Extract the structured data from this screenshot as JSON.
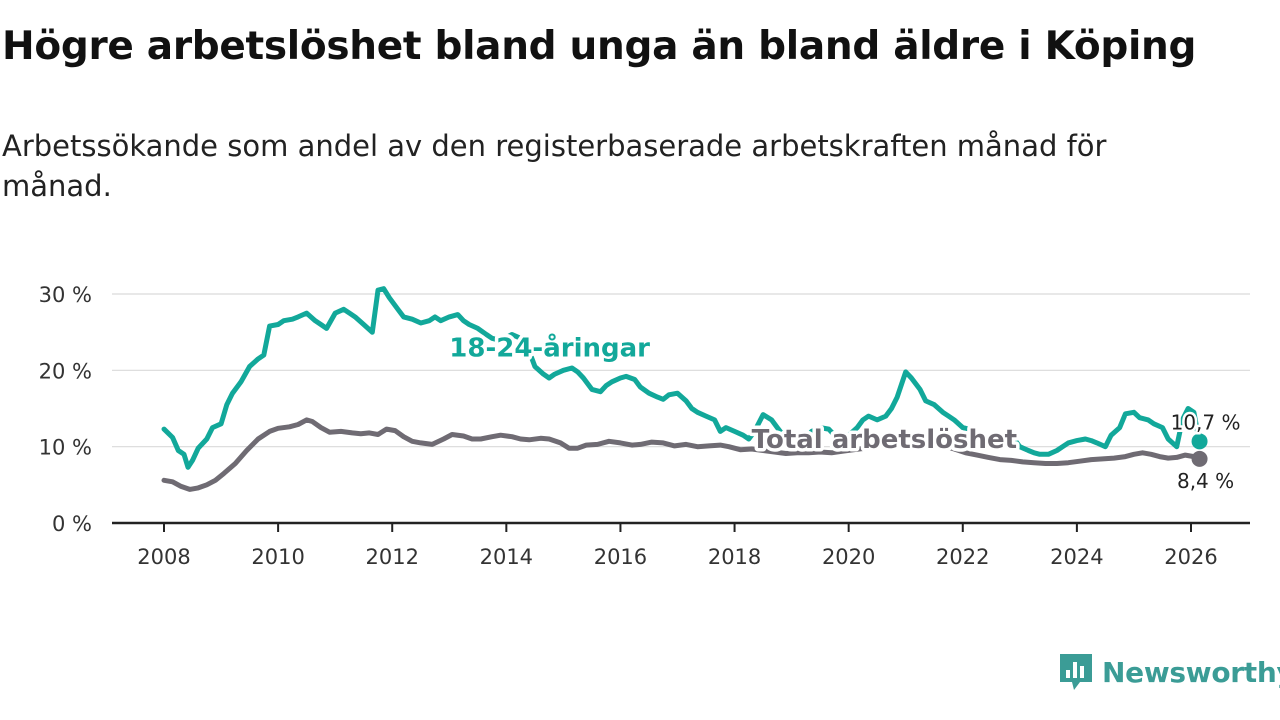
{
  "page": {
    "title": "Högre arbetslöshet bland unga än bland äldre i Köping",
    "subtitle": "Arbetssökande som andel av den registerbaserade arbetskraften månad för månad."
  },
  "brand": {
    "name": "Newsworthy",
    "color": "#3b9c96"
  },
  "chart_data": {
    "type": "line",
    "title": "Högre arbetslöshet bland unga än bland äldre i Köping",
    "ylabel": "",
    "xlabel": "",
    "xlim": [
      2007.5,
      2027.0
    ],
    "ylim": [
      0,
      30
    ],
    "y_ticks": [
      0,
      10,
      20,
      30
    ],
    "y_tick_labels": [
      "0 %",
      "10 %",
      "20 %",
      "30 %"
    ],
    "x_ticks": [
      2008,
      2010,
      2012,
      2014,
      2016,
      2018,
      2020,
      2022,
      2024,
      2026
    ],
    "x_tick_labels": [
      "2008",
      "2010",
      "2012",
      "2014",
      "2016",
      "2018",
      "2020",
      "2022",
      "2024",
      "2026"
    ],
    "grid": "horizontal",
    "series": [
      {
        "name": "18-24-åringar",
        "color": "#12a89a",
        "label_at": [
          2013.0,
          21.8
        ],
        "end_label": "10,7 %",
        "points": [
          [
            2008.0,
            12.3
          ],
          [
            2008.15,
            11.2
          ],
          [
            2008.25,
            9.5
          ],
          [
            2008.35,
            9.0
          ],
          [
            2008.42,
            7.3
          ],
          [
            2008.5,
            8.2
          ],
          [
            2008.6,
            9.8
          ],
          [
            2008.75,
            11.0
          ],
          [
            2008.85,
            12.5
          ],
          [
            2009.0,
            13.0
          ],
          [
            2009.1,
            15.5
          ],
          [
            2009.2,
            17.0
          ],
          [
            2009.35,
            18.5
          ],
          [
            2009.5,
            20.5
          ],
          [
            2009.65,
            21.5
          ],
          [
            2009.75,
            22.0
          ],
          [
            2009.85,
            25.8
          ],
          [
            2010.0,
            26.0
          ],
          [
            2010.1,
            26.5
          ],
          [
            2010.25,
            26.7
          ],
          [
            2010.35,
            27.0
          ],
          [
            2010.5,
            27.5
          ],
          [
            2010.65,
            26.5
          ],
          [
            2010.75,
            26.0
          ],
          [
            2010.85,
            25.5
          ],
          [
            2011.0,
            27.5
          ],
          [
            2011.15,
            28.0
          ],
          [
            2011.25,
            27.5
          ],
          [
            2011.35,
            27.0
          ],
          [
            2011.5,
            26.0
          ],
          [
            2011.65,
            25.0
          ],
          [
            2011.75,
            30.5
          ],
          [
            2011.85,
            30.7
          ],
          [
            2011.95,
            29.5
          ],
          [
            2012.1,
            28.0
          ],
          [
            2012.2,
            27.0
          ],
          [
            2012.35,
            26.7
          ],
          [
            2012.5,
            26.2
          ],
          [
            2012.65,
            26.5
          ],
          [
            2012.75,
            27.0
          ],
          [
            2012.85,
            26.5
          ],
          [
            2013.0,
            27.0
          ],
          [
            2013.15,
            27.3
          ],
          [
            2013.25,
            26.5
          ],
          [
            2013.35,
            26.0
          ],
          [
            2013.5,
            25.5
          ],
          [
            2013.65,
            24.7
          ],
          [
            2013.75,
            24.2
          ],
          [
            2013.85,
            24.0
          ],
          [
            2014.0,
            24.3
          ],
          [
            2014.1,
            24.7
          ],
          [
            2014.25,
            24.2
          ],
          [
            2014.35,
            23.5
          ],
          [
            2014.5,
            20.5
          ],
          [
            2014.65,
            19.5
          ],
          [
            2014.75,
            19.0
          ],
          [
            2014.85,
            19.5
          ],
          [
            2015.0,
            20.0
          ],
          [
            2015.15,
            20.3
          ],
          [
            2015.25,
            19.8
          ],
          [
            2015.35,
            19.0
          ],
          [
            2015.5,
            17.5
          ],
          [
            2015.65,
            17.2
          ],
          [
            2015.75,
            18.0
          ],
          [
            2015.85,
            18.5
          ],
          [
            2016.0,
            19.0
          ],
          [
            2016.1,
            19.2
          ],
          [
            2016.25,
            18.8
          ],
          [
            2016.35,
            17.8
          ],
          [
            2016.5,
            17.0
          ],
          [
            2016.65,
            16.5
          ],
          [
            2016.75,
            16.2
          ],
          [
            2016.85,
            16.8
          ],
          [
            2017.0,
            17.0
          ],
          [
            2017.15,
            16.0
          ],
          [
            2017.25,
            15.0
          ],
          [
            2017.35,
            14.5
          ],
          [
            2017.5,
            14.0
          ],
          [
            2017.65,
            13.5
          ],
          [
            2017.75,
            12.0
          ],
          [
            2017.85,
            12.5
          ],
          [
            2018.0,
            12.0
          ],
          [
            2018.15,
            11.5
          ],
          [
            2018.25,
            11.0
          ],
          [
            2018.35,
            12.0
          ],
          [
            2018.5,
            14.2
          ],
          [
            2018.65,
            13.5
          ],
          [
            2018.75,
            12.5
          ],
          [
            2018.85,
            11.5
          ],
          [
            2019.0,
            11.0
          ],
          [
            2019.15,
            10.8
          ],
          [
            2019.25,
            11.2
          ],
          [
            2019.35,
            12.0
          ],
          [
            2019.5,
            12.5
          ],
          [
            2019.65,
            12.3
          ],
          [
            2019.75,
            11.5
          ],
          [
            2019.85,
            11.0
          ],
          [
            2020.0,
            11.5
          ],
          [
            2020.15,
            12.5
          ],
          [
            2020.25,
            13.5
          ],
          [
            2020.35,
            14.0
          ],
          [
            2020.5,
            13.5
          ],
          [
            2020.65,
            14.0
          ],
          [
            2020.75,
            15.0
          ],
          [
            2020.85,
            16.5
          ],
          [
            2021.0,
            19.8
          ],
          [
            2021.1,
            19.0
          ],
          [
            2021.25,
            17.5
          ],
          [
            2021.35,
            16.0
          ],
          [
            2021.5,
            15.5
          ],
          [
            2021.65,
            14.5
          ],
          [
            2021.75,
            14.0
          ],
          [
            2021.85,
            13.5
          ],
          [
            2022.0,
            12.5
          ],
          [
            2022.15,
            12.2
          ],
          [
            2022.25,
            11.5
          ],
          [
            2022.35,
            11.0
          ],
          [
            2022.5,
            10.5
          ],
          [
            2022.65,
            10.0
          ],
          [
            2022.75,
            10.5
          ],
          [
            2022.85,
            11.5
          ],
          [
            2023.0,
            10.0
          ],
          [
            2023.15,
            9.5
          ],
          [
            2023.25,
            9.2
          ],
          [
            2023.35,
            9.0
          ],
          [
            2023.5,
            9.0
          ],
          [
            2023.65,
            9.5
          ],
          [
            2023.75,
            10.0
          ],
          [
            2023.85,
            10.5
          ],
          [
            2024.0,
            10.8
          ],
          [
            2024.15,
            11.0
          ],
          [
            2024.25,
            10.8
          ],
          [
            2024.35,
            10.5
          ],
          [
            2024.5,
            10.0
          ],
          [
            2024.6,
            11.5
          ],
          [
            2024.75,
            12.5
          ],
          [
            2024.85,
            14.3
          ],
          [
            2025.0,
            14.5
          ],
          [
            2025.1,
            13.8
          ],
          [
            2025.25,
            13.5
          ],
          [
            2025.35,
            13.0
          ],
          [
            2025.5,
            12.5
          ],
          [
            2025.6,
            11.0
          ],
          [
            2025.75,
            10.0
          ],
          [
            2025.85,
            13.5
          ],
          [
            2025.95,
            15.0
          ],
          [
            2026.05,
            14.5
          ],
          [
            2026.1,
            12.5
          ],
          [
            2026.15,
            10.7
          ]
        ]
      },
      {
        "name": "Total arbetslöshet",
        "color": "#6f6b73",
        "label_at": [
          2018.3,
          9.8
        ],
        "end_label": "8,4 %",
        "points": [
          [
            2008.0,
            5.6
          ],
          [
            2008.15,
            5.4
          ],
          [
            2008.3,
            4.8
          ],
          [
            2008.45,
            4.4
          ],
          [
            2008.6,
            4.6
          ],
          [
            2008.75,
            5.0
          ],
          [
            2008.9,
            5.6
          ],
          [
            2009.05,
            6.5
          ],
          [
            2009.25,
            7.8
          ],
          [
            2009.45,
            9.5
          ],
          [
            2009.65,
            11.0
          ],
          [
            2009.85,
            12.0
          ],
          [
            2010.0,
            12.4
          ],
          [
            2010.2,
            12.6
          ],
          [
            2010.35,
            12.9
          ],
          [
            2010.5,
            13.5
          ],
          [
            2010.6,
            13.3
          ],
          [
            2010.75,
            12.5
          ],
          [
            2010.9,
            11.9
          ],
          [
            2011.1,
            12.0
          ],
          [
            2011.3,
            11.8
          ],
          [
            2011.45,
            11.7
          ],
          [
            2011.6,
            11.8
          ],
          [
            2011.75,
            11.6
          ],
          [
            2011.9,
            12.3
          ],
          [
            2012.05,
            12.1
          ],
          [
            2012.2,
            11.3
          ],
          [
            2012.35,
            10.7
          ],
          [
            2012.5,
            10.5
          ],
          [
            2012.7,
            10.3
          ],
          [
            2012.9,
            11.0
          ],
          [
            2013.05,
            11.6
          ],
          [
            2013.25,
            11.4
          ],
          [
            2013.4,
            11.0
          ],
          [
            2013.55,
            11.0
          ],
          [
            2013.75,
            11.3
          ],
          [
            2013.9,
            11.5
          ],
          [
            2014.1,
            11.3
          ],
          [
            2014.25,
            11.0
          ],
          [
            2014.4,
            10.9
          ],
          [
            2014.6,
            11.1
          ],
          [
            2014.75,
            11.0
          ],
          [
            2014.95,
            10.5
          ],
          [
            2015.1,
            9.8
          ],
          [
            2015.25,
            9.8
          ],
          [
            2015.4,
            10.2
          ],
          [
            2015.6,
            10.3
          ],
          [
            2015.8,
            10.7
          ],
          [
            2016.0,
            10.5
          ],
          [
            2016.2,
            10.2
          ],
          [
            2016.35,
            10.3
          ],
          [
            2016.55,
            10.6
          ],
          [
            2016.75,
            10.5
          ],
          [
            2016.95,
            10.1
          ],
          [
            2017.15,
            10.3
          ],
          [
            2017.35,
            10.0
          ],
          [
            2017.55,
            10.1
          ],
          [
            2017.75,
            10.2
          ],
          [
            2017.9,
            10.0
          ],
          [
            2018.1,
            9.6
          ],
          [
            2018.3,
            9.7
          ],
          [
            2018.5,
            9.5
          ],
          [
            2018.7,
            9.3
          ],
          [
            2018.9,
            9.1
          ],
          [
            2019.1,
            9.2
          ],
          [
            2019.3,
            9.2
          ],
          [
            2019.5,
            9.3
          ],
          [
            2019.7,
            9.2
          ],
          [
            2019.9,
            9.4
          ],
          [
            2020.1,
            9.6
          ],
          [
            2020.3,
            9.8
          ],
          [
            2020.5,
            10.1
          ],
          [
            2020.7,
            10.6
          ],
          [
            2020.9,
            11.2
          ],
          [
            2021.05,
            11.1
          ],
          [
            2021.25,
            10.8
          ],
          [
            2021.45,
            10.4
          ],
          [
            2021.65,
            10.1
          ],
          [
            2021.85,
            9.7
          ],
          [
            2022.05,
            9.2
          ],
          [
            2022.25,
            8.9
          ],
          [
            2022.45,
            8.6
          ],
          [
            2022.65,
            8.3
          ],
          [
            2022.85,
            8.2
          ],
          [
            2023.05,
            8.0
          ],
          [
            2023.25,
            7.9
          ],
          [
            2023.45,
            7.8
          ],
          [
            2023.65,
            7.8
          ],
          [
            2023.85,
            7.9
          ],
          [
            2024.05,
            8.1
          ],
          [
            2024.25,
            8.3
          ],
          [
            2024.45,
            8.4
          ],
          [
            2024.65,
            8.5
          ],
          [
            2024.85,
            8.7
          ],
          [
            2025.0,
            9.0
          ],
          [
            2025.15,
            9.2
          ],
          [
            2025.3,
            9.0
          ],
          [
            2025.45,
            8.7
          ],
          [
            2025.6,
            8.5
          ],
          [
            2025.75,
            8.6
          ],
          [
            2025.9,
            8.9
          ],
          [
            2026.05,
            8.7
          ],
          [
            2026.15,
            8.4
          ]
        ]
      }
    ]
  }
}
